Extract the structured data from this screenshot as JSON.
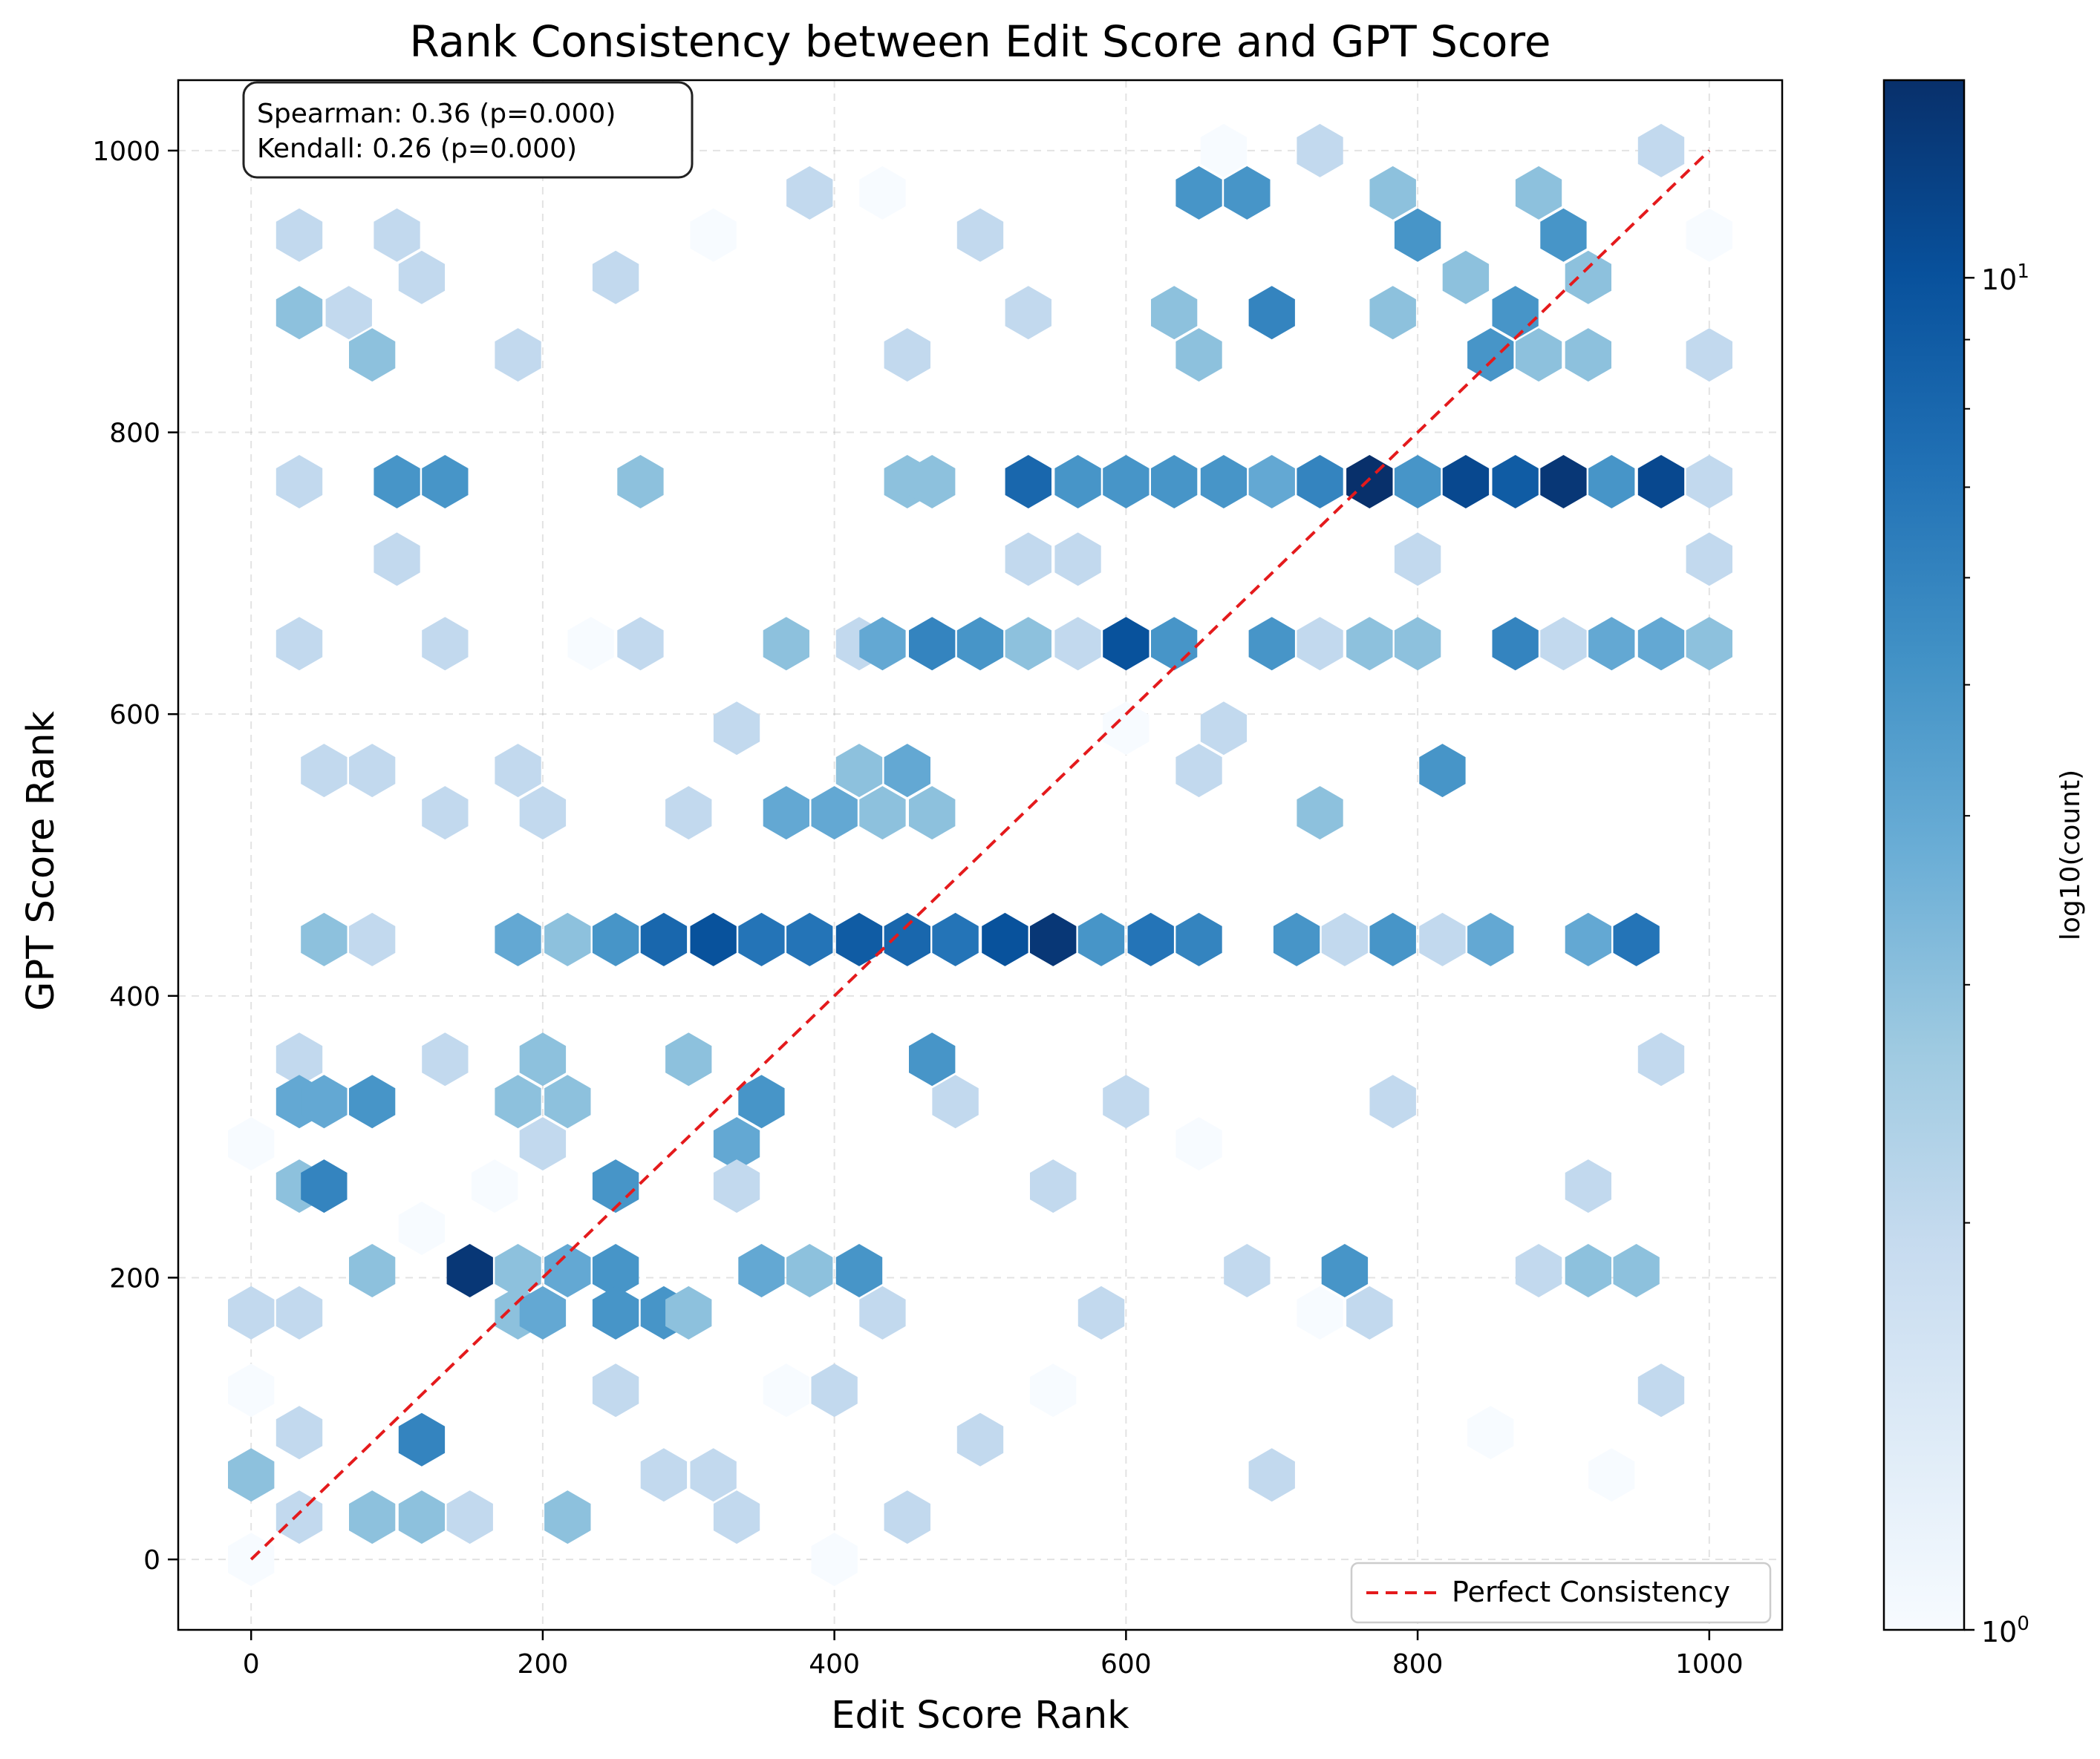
{
  "chart_data": {
    "type": "heatmap",
    "subtype": "hexbin",
    "title": "Rank Consistency between Edit Score and GPT Score",
    "xlabel": "Edit Score Rank",
    "ylabel": "GPT Score Rank",
    "xlim": [
      -50,
      1050
    ],
    "ylim": [
      -50,
      1050
    ],
    "xticks": [
      0,
      200,
      400,
      600,
      800,
      1000
    ],
    "yticks": [
      0,
      200,
      400,
      600,
      800,
      1000
    ],
    "grid": true,
    "colormap": "Blues",
    "colorbar": {
      "label": "log10(count)",
      "scale": "log",
      "range": [
        1,
        14
      ],
      "tick_labels": [
        {
          "base": "10",
          "exp": "0",
          "value": 1
        },
        {
          "base": "10",
          "exp": "1",
          "value": 10
        }
      ]
    },
    "annotation": {
      "lines": [
        "Spearman: 0.36 (p=0.000)",
        "Kendall: 0.26 (p=0.000)"
      ]
    },
    "legend": {
      "location": "lower right",
      "entries": [
        {
          "label": "Perfect Consistency",
          "color": "#e41a1c",
          "style": "dashed"
        }
      ]
    },
    "reference_line": {
      "x": [
        0,
        1000
      ],
      "y": [
        0,
        1000
      ]
    },
    "bins": [
      {
        "x": 0,
        "y": 60,
        "count": 3
      },
      {
        "x": 0,
        "y": 175,
        "count": 2
      },
      {
        "x": 0,
        "y": 120,
        "count": 1
      },
      {
        "x": 0,
        "y": 295,
        "count": 1
      },
      {
        "x": 0,
        "y": 0,
        "count": 1
      },
      {
        "x": 33,
        "y": 885,
        "count": 3
      },
      {
        "x": 33,
        "y": 940,
        "count": 2
      },
      {
        "x": 33,
        "y": 765,
        "count": 2
      },
      {
        "x": 33,
        "y": 650,
        "count": 2
      },
      {
        "x": 33,
        "y": 355,
        "count": 2
      },
      {
        "x": 33,
        "y": 325,
        "count": 4
      },
      {
        "x": 33,
        "y": 265,
        "count": 3
      },
      {
        "x": 33,
        "y": 175,
        "count": 2
      },
      {
        "x": 33,
        "y": 90,
        "count": 2
      },
      {
        "x": 33,
        "y": 30,
        "count": 2
      },
      {
        "x": 50,
        "y": 560,
        "count": 2
      },
      {
        "x": 50,
        "y": 440,
        "count": 3
      },
      {
        "x": 50,
        "y": 325,
        "count": 4
      },
      {
        "x": 50,
        "y": 265,
        "count": 6
      },
      {
        "x": 67,
        "y": 885,
        "count": 2
      },
      {
        "x": 83,
        "y": 855,
        "count": 3
      },
      {
        "x": 83,
        "y": 560,
        "count": 2
      },
      {
        "x": 83,
        "y": 440,
        "count": 2
      },
      {
        "x": 83,
        "y": 325,
        "count": 5
      },
      {
        "x": 83,
        "y": 205,
        "count": 3
      },
      {
        "x": 83,
        "y": 30,
        "count": 3
      },
      {
        "x": 100,
        "y": 940,
        "count": 2
      },
      {
        "x": 100,
        "y": 765,
        "count": 5
      },
      {
        "x": 100,
        "y": 710,
        "count": 2
      },
      {
        "x": 117,
        "y": 910,
        "count": 2
      },
      {
        "x": 117,
        "y": 85,
        "count": 6
      },
      {
        "x": 117,
        "y": 30,
        "count": 3
      },
      {
        "x": 133,
        "y": 765,
        "count": 5
      },
      {
        "x": 133,
        "y": 650,
        "count": 2
      },
      {
        "x": 133,
        "y": 530,
        "count": 2
      },
      {
        "x": 133,
        "y": 355,
        "count": 2
      },
      {
        "x": 150,
        "y": 205,
        "count": 13
      },
      {
        "x": 150,
        "y": 30,
        "count": 2
      },
      {
        "x": 183,
        "y": 855,
        "count": 2
      },
      {
        "x": 183,
        "y": 560,
        "count": 2
      },
      {
        "x": 183,
        "y": 440,
        "count": 4
      },
      {
        "x": 183,
        "y": 325,
        "count": 3
      },
      {
        "x": 183,
        "y": 205,
        "count": 3
      },
      {
        "x": 183,
        "y": 175,
        "count": 3
      },
      {
        "x": 200,
        "y": 530,
        "count": 2
      },
      {
        "x": 200,
        "y": 355,
        "count": 3
      },
      {
        "x": 200,
        "y": 295,
        "count": 2
      },
      {
        "x": 200,
        "y": 175,
        "count": 4
      },
      {
        "x": 217,
        "y": 440,
        "count": 3
      },
      {
        "x": 217,
        "y": 325,
        "count": 3
      },
      {
        "x": 217,
        "y": 205,
        "count": 4
      },
      {
        "x": 217,
        "y": 30,
        "count": 3
      },
      {
        "x": 250,
        "y": 910,
        "count": 2
      },
      {
        "x": 250,
        "y": 440,
        "count": 5
      },
      {
        "x": 250,
        "y": 265,
        "count": 5
      },
      {
        "x": 250,
        "y": 205,
        "count": 5
      },
      {
        "x": 250,
        "y": 175,
        "count": 5
      },
      {
        "x": 267,
        "y": 765,
        "count": 3
      },
      {
        "x": 267,
        "y": 650,
        "count": 2
      },
      {
        "x": 283,
        "y": 440,
        "count": 8
      },
      {
        "x": 283,
        "y": 175,
        "count": 5
      },
      {
        "x": 300,
        "y": 355,
        "count": 3
      },
      {
        "x": 300,
        "y": 175,
        "count": 3
      },
      {
        "x": 300,
        "y": 530,
        "count": 2
      },
      {
        "x": 317,
        "y": 440,
        "count": 10
      },
      {
        "x": 333,
        "y": 590,
        "count": 2
      },
      {
        "x": 333,
        "y": 295,
        "count": 4
      },
      {
        "x": 333,
        "y": 265,
        "count": 2
      },
      {
        "x": 350,
        "y": 440,
        "count": 7
      },
      {
        "x": 350,
        "y": 325,
        "count": 5
      },
      {
        "x": 350,
        "y": 205,
        "count": 4
      },
      {
        "x": 367,
        "y": 650,
        "count": 3
      },
      {
        "x": 367,
        "y": 530,
        "count": 4
      },
      {
        "x": 383,
        "y": 970,
        "count": 2
      },
      {
        "x": 383,
        "y": 440,
        "count": 7
      },
      {
        "x": 383,
        "y": 205,
        "count": 3
      },
      {
        "x": 400,
        "y": 530,
        "count": 4
      },
      {
        "x": 400,
        "y": 120,
        "count": 2
      },
      {
        "x": 400,
        "y": 0,
        "count": 1
      },
      {
        "x": 417,
        "y": 650,
        "count": 2
      },
      {
        "x": 417,
        "y": 560,
        "count": 3
      },
      {
        "x": 417,
        "y": 440,
        "count": 9
      },
      {
        "x": 417,
        "y": 205,
        "count": 5
      },
      {
        "x": 433,
        "y": 650,
        "count": 4
      },
      {
        "x": 433,
        "y": 530,
        "count": 3
      },
      {
        "x": 450,
        "y": 855,
        "count": 2
      },
      {
        "x": 450,
        "y": 765,
        "count": 3
      },
      {
        "x": 450,
        "y": 560,
        "count": 4
      },
      {
        "x": 450,
        "y": 440,
        "count": 8
      },
      {
        "x": 450,
        "y": 30,
        "count": 2
      },
      {
        "x": 467,
        "y": 765,
        "count": 3
      },
      {
        "x": 467,
        "y": 650,
        "count": 6
      },
      {
        "x": 467,
        "y": 530,
        "count": 3
      },
      {
        "x": 467,
        "y": 355,
        "count": 5
      },
      {
        "x": 483,
        "y": 440,
        "count": 7
      },
      {
        "x": 483,
        "y": 325,
        "count": 2
      },
      {
        "x": 500,
        "y": 650,
        "count": 5
      },
      {
        "x": 500,
        "y": 940,
        "count": 2
      },
      {
        "x": 500,
        "y": 85,
        "count": 2
      },
      {
        "x": 517,
        "y": 440,
        "count": 10
      },
      {
        "x": 533,
        "y": 765,
        "count": 8
      },
      {
        "x": 533,
        "y": 885,
        "count": 2
      },
      {
        "x": 533,
        "y": 710,
        "count": 2
      },
      {
        "x": 533,
        "y": 650,
        "count": 3
      },
      {
        "x": 550,
        "y": 440,
        "count": 13
      },
      {
        "x": 550,
        "y": 265,
        "count": 2
      },
      {
        "x": 567,
        "y": 765,
        "count": 5
      },
      {
        "x": 567,
        "y": 710,
        "count": 2
      },
      {
        "x": 567,
        "y": 650,
        "count": 2
      },
      {
        "x": 583,
        "y": 440,
        "count": 5
      },
      {
        "x": 583,
        "y": 175,
        "count": 2
      },
      {
        "x": 600,
        "y": 765,
        "count": 5
      },
      {
        "x": 600,
        "y": 650,
        "count": 10
      },
      {
        "x": 600,
        "y": 325,
        "count": 2
      },
      {
        "x": 617,
        "y": 440,
        "count": 7
      },
      {
        "x": 633,
        "y": 765,
        "count": 5
      },
      {
        "x": 633,
        "y": 885,
        "count": 3
      },
      {
        "x": 633,
        "y": 650,
        "count": 5
      },
      {
        "x": 650,
        "y": 970,
        "count": 5
      },
      {
        "x": 650,
        "y": 855,
        "count": 3
      },
      {
        "x": 650,
        "y": 440,
        "count": 6
      },
      {
        "x": 650,
        "y": 560,
        "count": 2
      },
      {
        "x": 667,
        "y": 765,
        "count": 5
      },
      {
        "x": 667,
        "y": 590,
        "count": 2
      },
      {
        "x": 683,
        "y": 970,
        "count": 5
      },
      {
        "x": 683,
        "y": 205,
        "count": 2
      },
      {
        "x": 700,
        "y": 765,
        "count": 4
      },
      {
        "x": 700,
        "y": 885,
        "count": 6
      },
      {
        "x": 700,
        "y": 650,
        "count": 5
      },
      {
        "x": 700,
        "y": 60,
        "count": 2
      },
      {
        "x": 717,
        "y": 440,
        "count": 5
      },
      {
        "x": 733,
        "y": 1000,
        "count": 2
      },
      {
        "x": 733,
        "y": 765,
        "count": 6
      },
      {
        "x": 733,
        "y": 650,
        "count": 2
      },
      {
        "x": 733,
        "y": 530,
        "count": 3
      },
      {
        "x": 750,
        "y": 440,
        "count": 2
      },
      {
        "x": 750,
        "y": 205,
        "count": 5
      },
      {
        "x": 767,
        "y": 765,
        "count": 14
      },
      {
        "x": 767,
        "y": 650,
        "count": 3
      },
      {
        "x": 767,
        "y": 175,
        "count": 2
      },
      {
        "x": 783,
        "y": 970,
        "count": 3
      },
      {
        "x": 783,
        "y": 885,
        "count": 3
      },
      {
        "x": 783,
        "y": 440,
        "count": 5
      },
      {
        "x": 783,
        "y": 325,
        "count": 2
      },
      {
        "x": 800,
        "y": 940,
        "count": 5
      },
      {
        "x": 800,
        "y": 765,
        "count": 5
      },
      {
        "x": 800,
        "y": 710,
        "count": 2
      },
      {
        "x": 800,
        "y": 650,
        "count": 3
      },
      {
        "x": 817,
        "y": 560,
        "count": 5
      },
      {
        "x": 817,
        "y": 440,
        "count": 2
      },
      {
        "x": 833,
        "y": 765,
        "count": 11
      },
      {
        "x": 833,
        "y": 910,
        "count": 3
      },
      {
        "x": 850,
        "y": 440,
        "count": 4
      },
      {
        "x": 850,
        "y": 855,
        "count": 5
      },
      {
        "x": 867,
        "y": 765,
        "count": 9
      },
      {
        "x": 867,
        "y": 650,
        "count": 6
      },
      {
        "x": 867,
        "y": 885,
        "count": 5
      },
      {
        "x": 883,
        "y": 970,
        "count": 3
      },
      {
        "x": 883,
        "y": 855,
        "count": 3
      },
      {
        "x": 883,
        "y": 205,
        "count": 2
      },
      {
        "x": 900,
        "y": 765,
        "count": 13
      },
      {
        "x": 900,
        "y": 940,
        "count": 5
      },
      {
        "x": 900,
        "y": 650,
        "count": 2
      },
      {
        "x": 917,
        "y": 440,
        "count": 4
      },
      {
        "x": 917,
        "y": 910,
        "count": 3
      },
      {
        "x": 917,
        "y": 855,
        "count": 3
      },
      {
        "x": 917,
        "y": 205,
        "count": 3
      },
      {
        "x": 917,
        "y": 265,
        "count": 2
      },
      {
        "x": 933,
        "y": 765,
        "count": 5
      },
      {
        "x": 933,
        "y": 650,
        "count": 4
      },
      {
        "x": 950,
        "y": 440,
        "count": 7
      },
      {
        "x": 950,
        "y": 205,
        "count": 3
      },
      {
        "x": 967,
        "y": 765,
        "count": 11
      },
      {
        "x": 967,
        "y": 650,
        "count": 4
      },
      {
        "x": 967,
        "y": 1000,
        "count": 2
      },
      {
        "x": 967,
        "y": 355,
        "count": 2
      },
      {
        "x": 967,
        "y": 120,
        "count": 2
      },
      {
        "x": 1000,
        "y": 765,
        "count": 2
      },
      {
        "x": 1000,
        "y": 710,
        "count": 2
      },
      {
        "x": 1000,
        "y": 650,
        "count": 3
      },
      {
        "x": 1000,
        "y": 855,
        "count": 2
      },
      {
        "x": 117,
        "y": 235,
        "count": 1
      },
      {
        "x": 167,
        "y": 265,
        "count": 1
      },
      {
        "x": 250,
        "y": 120,
        "count": 2
      },
      {
        "x": 283,
        "y": 60,
        "count": 2
      },
      {
        "x": 317,
        "y": 60,
        "count": 2
      },
      {
        "x": 333,
        "y": 30,
        "count": 2
      },
      {
        "x": 367,
        "y": 120,
        "count": 1
      },
      {
        "x": 433,
        "y": 175,
        "count": 2
      },
      {
        "x": 550,
        "y": 120,
        "count": 1
      },
      {
        "x": 650,
        "y": 295,
        "count": 1
      },
      {
        "x": 733,
        "y": 175,
        "count": 1
      },
      {
        "x": 850,
        "y": 90,
        "count": 1
      },
      {
        "x": 933,
        "y": 60,
        "count": 1
      },
      {
        "x": 1000,
        "y": 940,
        "count": 1
      },
      {
        "x": 600,
        "y": 590,
        "count": 1
      },
      {
        "x": 233,
        "y": 650,
        "count": 1
      },
      {
        "x": 183,
        "y": 1000,
        "count": 1
      },
      {
        "x": 317,
        "y": 940,
        "count": 1
      },
      {
        "x": 433,
        "y": 970,
        "count": 1
      },
      {
        "x": 667,
        "y": 1000,
        "count": 1
      }
    ]
  }
}
